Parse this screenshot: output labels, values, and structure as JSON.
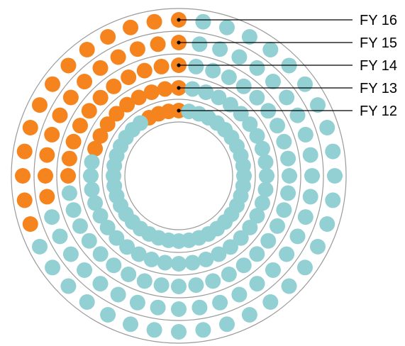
{
  "chart_data": {
    "type": "radial-dot",
    "dots_per_ring": 40,
    "colors": {
      "highlight": "#f5841f",
      "base": "#92d0d3",
      "ring": "#9a9a9a",
      "leader": "#000000"
    },
    "series": [
      {
        "name": "FY 12",
        "highlighted": 4
      },
      {
        "name": "FY 13",
        "highlighted": 9
      },
      {
        "name": "FY 14",
        "highlighted": 11
      },
      {
        "name": "FY 15",
        "highlighted": 12
      },
      {
        "name": "FY 16",
        "highlighted": 13
      }
    ]
  }
}
